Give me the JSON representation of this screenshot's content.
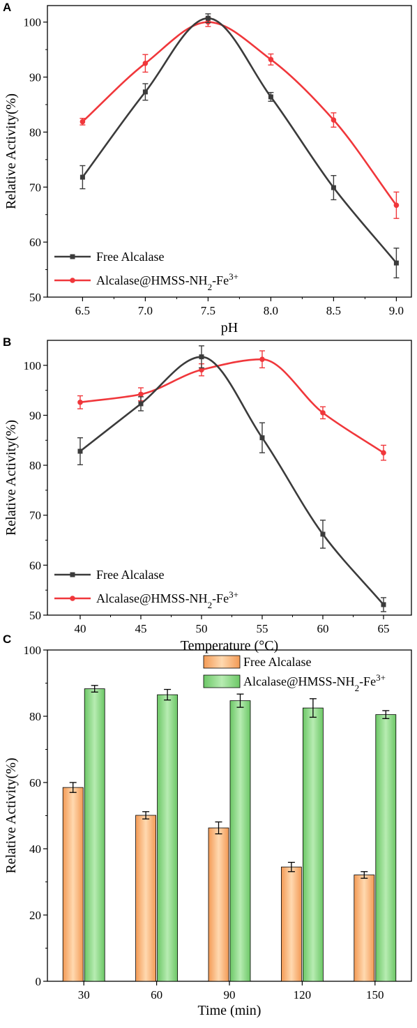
{
  "chart_data": [
    {
      "panel": "A",
      "type": "line",
      "xlabel": "pH",
      "ylabel": "Relative Activity(%)",
      "x": [
        6.5,
        7.0,
        7.5,
        8.0,
        8.5,
        9.0
      ],
      "x_tick_labels": [
        "6.5",
        "7.0",
        "7.5",
        "8.0",
        "8.5",
        "9.0"
      ],
      "xlim": [
        6.22,
        9.12
      ],
      "ylim": [
        50,
        103
      ],
      "y_ticks": [
        50,
        60,
        70,
        80,
        90,
        100
      ],
      "grid": false,
      "legend_position": "bottom-left",
      "series": [
        {
          "name": "Free Alcalase",
          "name_parts": {
            "base": "Free Alcalase",
            "sub": "",
            "mid": "",
            "sup": ""
          },
          "color": "#3b3b3b",
          "marker": "square",
          "values": [
            71.8,
            87.3,
            100.7,
            86.4,
            69.9,
            56.2
          ],
          "errors": [
            2.1,
            1.5,
            0.8,
            0.8,
            2.2,
            2.7
          ]
        },
        {
          "name": "Alcalase@HMSS-NH2-Fe3+",
          "name_parts": {
            "base": "Alcalase@HMSS-NH",
            "sub": "2",
            "mid": "-Fe",
            "sup": "3+"
          },
          "color": "#f0373b",
          "marker": "circle",
          "values": [
            81.9,
            92.5,
            100.0,
            93.2,
            82.2,
            66.7
          ],
          "errors": [
            0.6,
            1.6,
            0.8,
            1.0,
            1.3,
            2.4
          ]
        }
      ]
    },
    {
      "panel": "B",
      "type": "line",
      "xlabel": "Temperature (°C)",
      "ylabel": "Relative Activity(%)",
      "x": [
        40,
        45,
        50,
        55,
        60,
        65
      ],
      "x_tick_labels": [
        "40",
        "45",
        "50",
        "55",
        "60",
        "65"
      ],
      "xlim": [
        37.3,
        67.3
      ],
      "ylim": [
        50,
        105
      ],
      "y_ticks": [
        50,
        60,
        70,
        80,
        90,
        100
      ],
      "grid": false,
      "legend_position": "bottom-left",
      "series": [
        {
          "name": "Free Alcalase",
          "name_parts": {
            "base": "Free Alcalase",
            "sub": "",
            "mid": "",
            "sup": ""
          },
          "color": "#3b3b3b",
          "marker": "square",
          "values": [
            82.8,
            92.3,
            101.7,
            85.5,
            66.2,
            52.1
          ],
          "errors": [
            2.7,
            1.4,
            2.2,
            3.0,
            2.8,
            1.4
          ]
        },
        {
          "name": "Alcalase@HMSS-NH2-Fe3+",
          "name_parts": {
            "base": "Alcalase@HMSS-NH",
            "sub": "2",
            "mid": "-Fe",
            "sup": "3+"
          },
          "color": "#f0373b",
          "marker": "circle",
          "values": [
            92.6,
            94.2,
            99.1,
            101.2,
            90.5,
            82.5
          ],
          "errors": [
            1.3,
            1.3,
            1.2,
            1.7,
            1.2,
            1.5
          ]
        }
      ]
    },
    {
      "panel": "C",
      "type": "bar",
      "xlabel": "Time (min)",
      "ylabel": "Relative Activity(%)",
      "categories": [
        "30",
        "60",
        "90",
        "120",
        "150"
      ],
      "ylim": [
        0,
        100
      ],
      "y_ticks": [
        0,
        20,
        40,
        60,
        80,
        100
      ],
      "grid": false,
      "legend_position": "top-right",
      "series": [
        {
          "name": "Free Alcalase",
          "name_parts": {
            "base": "Free Alcalase",
            "sub": "",
            "mid": "",
            "sup": ""
          },
          "color": "#f7a868",
          "values": [
            58.5,
            50.1,
            46.3,
            34.5,
            32.1
          ],
          "errors": [
            1.5,
            1.1,
            1.8,
            1.4,
            1.0
          ]
        },
        {
          "name": "Alcalase@HMSS-NH2-Fe3+",
          "name_parts": {
            "base": "Alcalase@HMSS-NH",
            "sub": "2",
            "mid": "-Fe",
            "sup": "3+"
          },
          "color": "#7fd37a",
          "values": [
            88.3,
            86.5,
            84.7,
            82.5,
            80.5
          ],
          "errors": [
            1.0,
            1.6,
            2.0,
            2.8,
            1.2
          ]
        }
      ]
    }
  ]
}
